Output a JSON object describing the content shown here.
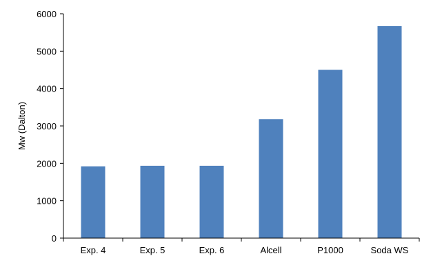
{
  "chart_data": {
    "type": "bar",
    "title": "",
    "xlabel": "",
    "ylabel": "Mw (Dalton)",
    "categories": [
      "Exp. 4",
      "Exp. 5",
      "Exp. 6",
      "Alcell",
      "P1000",
      "Soda WS"
    ],
    "values": [
      1920,
      1935,
      1935,
      3180,
      4500,
      5670
    ],
    "ylim": [
      0,
      6000
    ],
    "yticks": [
      0,
      1000,
      2000,
      3000,
      4000,
      5000,
      6000
    ],
    "grid": false,
    "legend": "none",
    "bar_color": "#4F81BD",
    "axis_color": "#000000"
  }
}
